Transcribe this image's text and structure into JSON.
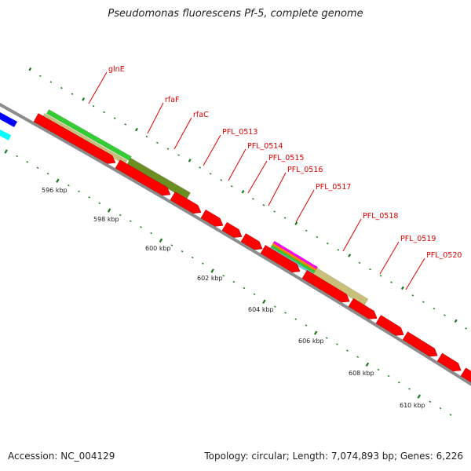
{
  "title": "Pseudomonas fluorescens Pf-5, complete genome",
  "footer": {
    "accession": "Accession: NC_004129",
    "summary": "Topology: circular; Length: 7,074,893 bp; Genes: 6,226"
  },
  "colors": {
    "backbone": "#8c8c8c",
    "cds": "#ff0000",
    "ticks": "#1a7a1a",
    "labels": "#e00000",
    "khaki": "#c8c07a",
    "olive": "#6b8e23",
    "green": "#33cc33",
    "blue": "#0000ff",
    "cyan": "#00ffff"
  },
  "scale_labels": [
    "596 kbp",
    "598 kbp",
    "600 kbp",
    "602 kbp",
    "604 kbp",
    "606 kbp",
    "608 kbp",
    "610 kbp"
  ],
  "gene_labels": [
    "glnE",
    "rfaF",
    "rfaC",
    "PFL_0513",
    "PFL_0514",
    "PFL_0515",
    "PFL_0516",
    "PFL_0517",
    "PFL_0518",
    "PFL_0519",
    "PFL_0520"
  ]
}
